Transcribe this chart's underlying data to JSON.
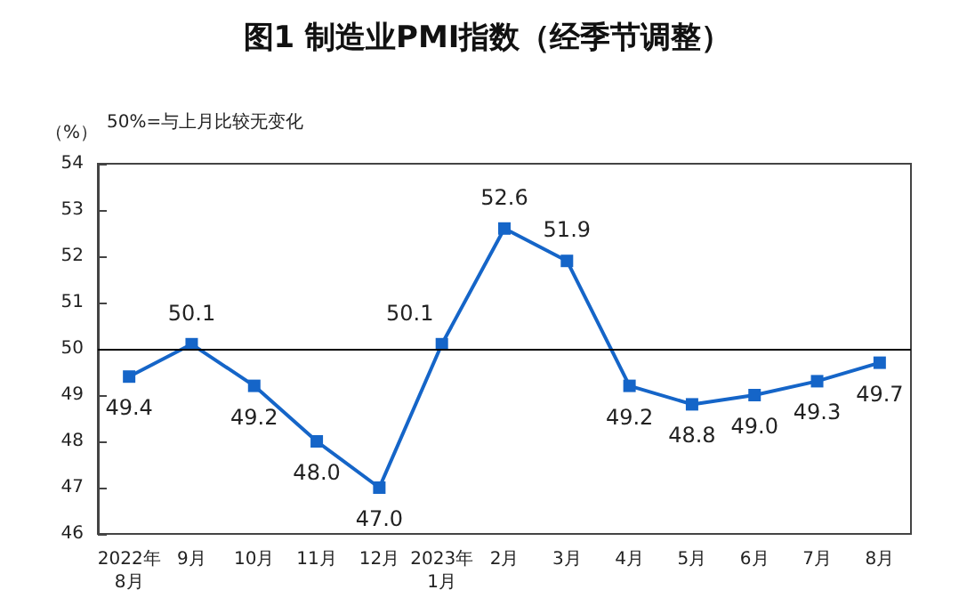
{
  "chart_data": {
    "type": "line",
    "title": "图1 制造业PMI指数（经季节调整）",
    "ylabel": "（%）",
    "annotations": [
      "50%=与上月比较无变化"
    ],
    "categories": [
      "2022年\n8月",
      "9月",
      "10月",
      "11月",
      "12月",
      "2023年\n1月",
      "2月",
      "3月",
      "4月",
      "5月",
      "6月",
      "7月",
      "8月"
    ],
    "series": [
      {
        "color": "#1565c8",
        "values": [
          49.4,
          50.1,
          49.2,
          48.0,
          47.0,
          50.1,
          52.6,
          51.9,
          49.2,
          48.8,
          49.0,
          49.3,
          49.7
        ],
        "value_labels": [
          "49.4",
          "50.1",
          "49.2",
          "48.0",
          "47.0",
          "50.1",
          "52.6",
          "51.9",
          "49.2",
          "48.8",
          "49.0",
          "49.3",
          "49.7"
        ]
      }
    ],
    "ylim": [
      46,
      54
    ],
    "yticks": [
      46,
      47,
      48,
      49,
      50,
      51,
      52,
      53,
      54
    ],
    "ref_lines": [
      {
        "axis": "y",
        "value": 50,
        "color": "#000000"
      }
    ],
    "marker": "square",
    "line_style": "solid",
    "grid": false
  }
}
